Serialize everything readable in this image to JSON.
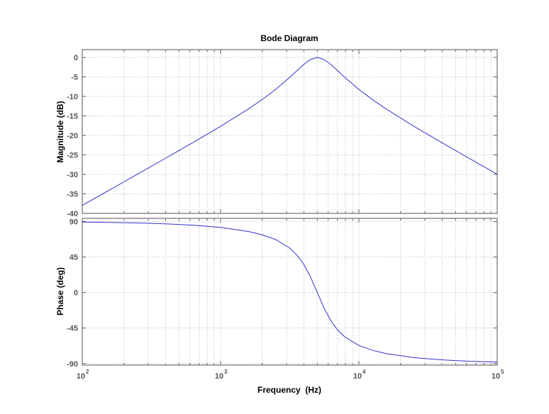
{
  "chart_data": [
    {
      "type": "line",
      "title": "Bode Diagram",
      "ylabel": "Magnitude (dB)",
      "xscale": "log",
      "xlim": [
        100,
        100000
      ],
      "ylim": [
        -40,
        2
      ],
      "yticks": [
        0,
        -5,
        -10,
        -15,
        -20,
        -25,
        -30,
        -35,
        -40
      ],
      "grid": true,
      "color": "#3333cc",
      "x": [
        100,
        158.5,
        251.2,
        398.1,
        631,
        1000,
        1585,
        1995,
        2512,
        3162,
        3548,
        3981,
        4467,
        5012,
        5623,
        6310,
        7079,
        7943,
        10000,
        12589,
        15849,
        25119,
        39811,
        63096,
        100000
      ],
      "y": [
        -37.95,
        -33.94,
        -29.93,
        -25.91,
        -21.84,
        -17.67,
        -13.24,
        -10.82,
        -8.15,
        -5.11,
        -3.47,
        -1.84,
        -0.52,
        0.0,
        -0.56,
        -1.9,
        -3.53,
        -5.18,
        -8.2,
        -10.87,
        -13.29,
        -17.71,
        -21.88,
        -25.95,
        -29.97
      ]
    },
    {
      "type": "line",
      "xlabel": "Frequency  (Hz)",
      "ylabel": "Phase (deg)",
      "xscale": "log",
      "xlim": [
        100,
        100000
      ],
      "ylim": [
        -92,
        94
      ],
      "yticks": [
        90,
        45,
        0,
        -45,
        -90
      ],
      "xticks": [
        {
          "base": "10",
          "exp": "2"
        },
        {
          "base": "10",
          "exp": "3"
        },
        {
          "base": "10",
          "exp": "4"
        },
        {
          "base": "10",
          "exp": "5"
        }
      ],
      "grid": true,
      "color": "#3333cc",
      "x": [
        100,
        158.5,
        251.2,
        398.1,
        631,
        1000,
        1585,
        1995,
        2512,
        3162,
        3548,
        3981,
        4467,
        5012,
        5623,
        6310,
        7079,
        7943,
        10000,
        12589,
        15849,
        25119,
        39811,
        63096,
        100000
      ],
      "y": [
        89.27,
        88.85,
        88.17,
        87.1,
        85.36,
        82.49,
        77.42,
        73.28,
        66.95,
        56.3,
        47.86,
        36.0,
        19.7,
        -0.4,
        -20.4,
        -36.55,
        -48.3,
        -56.6,
        -67.12,
        -73.38,
        -77.5,
        -82.53,
        -85.38,
        -87.11,
        -88.18
      ]
    }
  ]
}
